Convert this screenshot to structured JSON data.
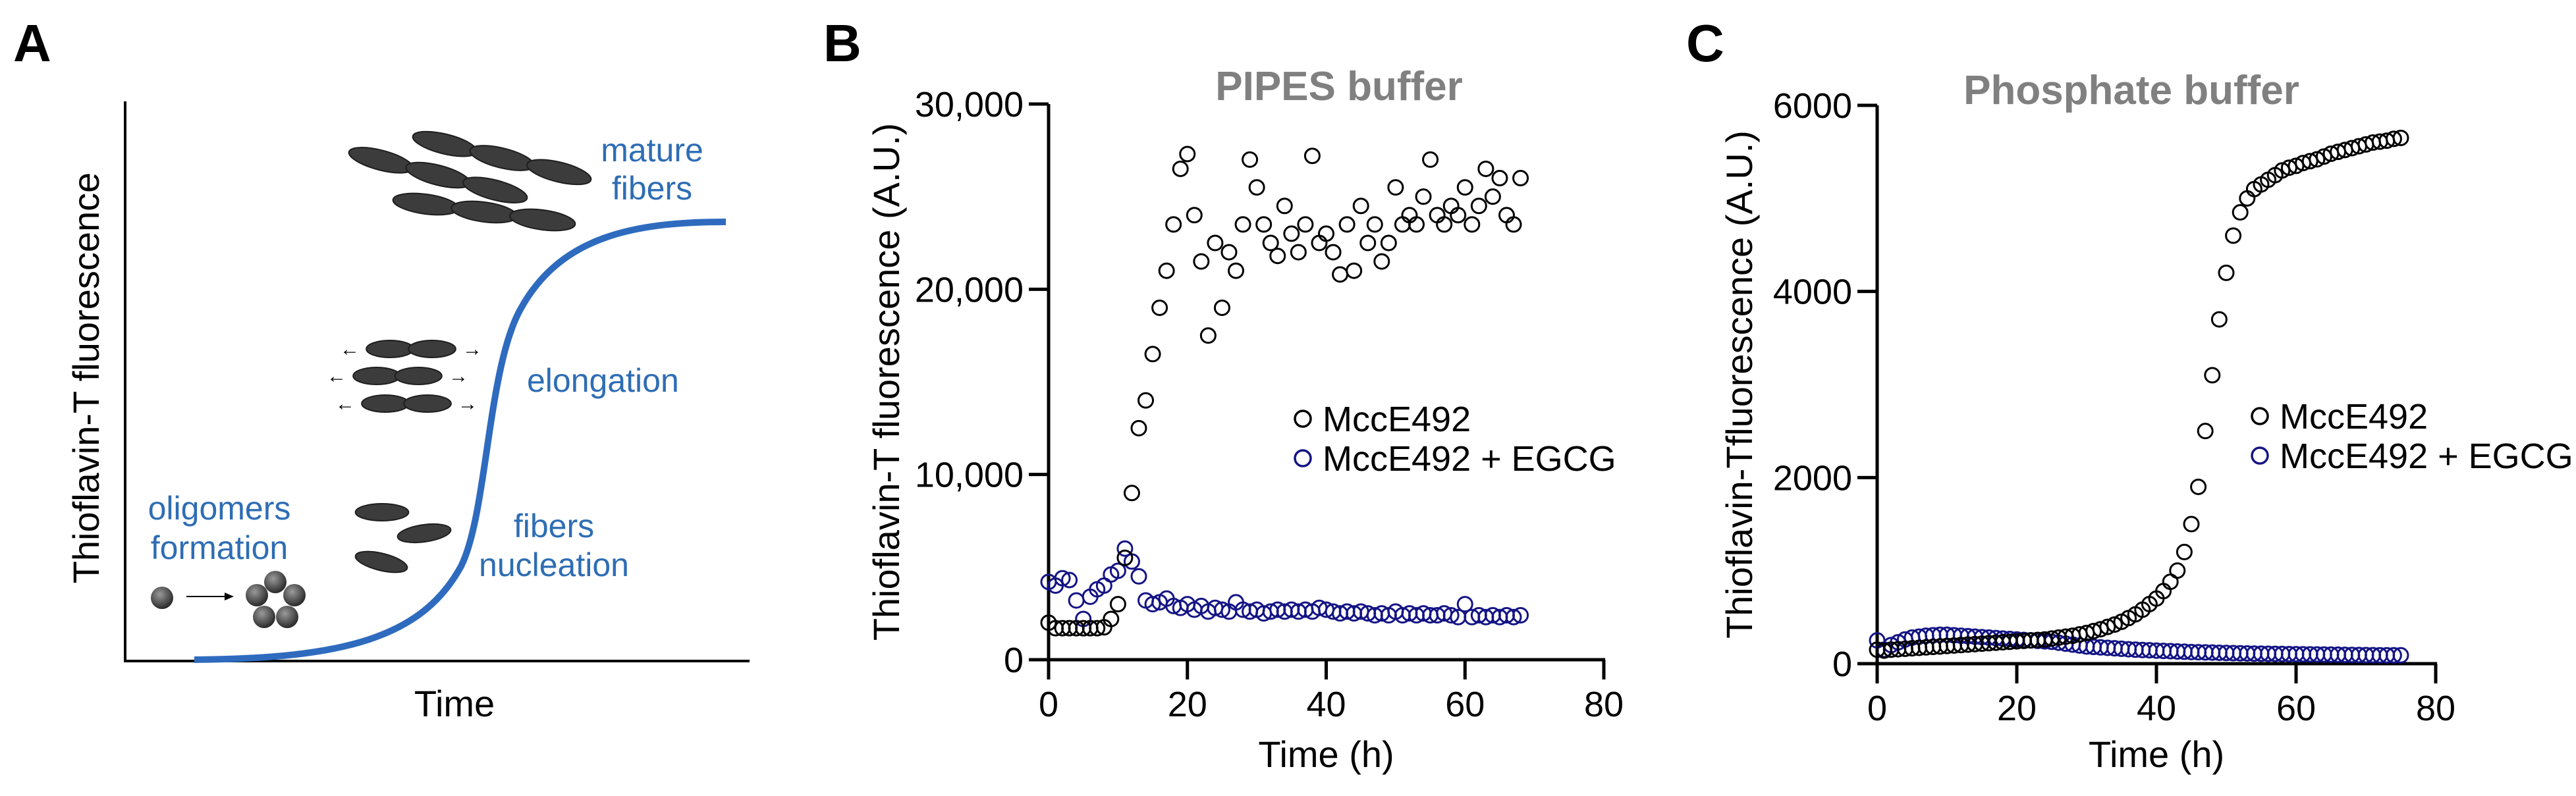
{
  "colors": {
    "curve_blue": "#2e6bbf",
    "stage_text": "#2e6db4",
    "series_black": "#000000",
    "series_navy": "#141485",
    "title_gray": "#808080",
    "fiber": "#3c3c3c"
  },
  "panel_a": {
    "letter": "A",
    "ylabel": "Thioflavin-T fluorescence",
    "xlabel": "Time",
    "stages": {
      "mature_1": "mature",
      "mature_2": "fibers",
      "elongation": "elongation",
      "nucleation_1": "fibers",
      "nucleation_2": "nucleation",
      "oligomers_1": "oligomers",
      "oligomers_2": "formation"
    }
  },
  "chart_data": [
    {
      "panel": "B",
      "type": "scatter",
      "title": "PIPES buffer",
      "xlabel": "Time (h)",
      "ylabel": "Thioflavin-T fluorescence (A.U.)",
      "xlim": [
        0,
        80
      ],
      "ylim": [
        0,
        30000
      ],
      "xticks": [
        0,
        20,
        40,
        60,
        80
      ],
      "yticks": [
        0,
        10000,
        20000,
        30000
      ],
      "ytick_labels": [
        "0",
        "10,000",
        "20,000",
        "30,000"
      ],
      "legend_position": "center-right",
      "series": [
        {
          "name": "MccE492",
          "color": "#000000",
          "x": [
            0,
            1,
            2,
            3,
            4,
            5,
            6,
            7,
            8,
            9,
            10,
            11,
            12,
            13,
            14,
            15,
            16,
            17,
            18,
            19,
            20,
            21,
            22,
            23,
            24,
            25,
            26,
            27,
            28,
            29,
            30,
            31,
            32,
            33,
            34,
            35,
            36,
            37,
            38,
            39,
            40,
            41,
            42,
            43,
            44,
            45,
            46,
            47,
            48,
            49,
            50,
            51,
            52,
            53,
            54,
            55,
            56,
            57,
            58,
            59,
            60,
            61,
            62,
            63,
            64,
            65,
            66,
            67,
            68
          ],
          "y": [
            2000,
            1700,
            1700,
            1700,
            1700,
            1700,
            1700,
            1700,
            1750,
            2200,
            3000,
            5500,
            9000,
            12500,
            14000,
            16500,
            19000,
            21000,
            23500,
            26500,
            27300,
            24000,
            21500,
            17500,
            22500,
            19000,
            22000,
            21000,
            23500,
            27000,
            25500,
            23500,
            22500,
            21800,
            24500,
            23000,
            22000,
            23500,
            27200,
            22500,
            23000,
            22000,
            20800,
            23500,
            21000,
            24500,
            22500,
            23500,
            21500,
            22500,
            25500,
            23500,
            24000,
            23500,
            25000,
            27000,
            24000,
            23500,
            24500,
            24000,
            25500,
            23500,
            24500,
            26500,
            25000,
            26000,
            24000,
            23500,
            26000
          ]
        },
        {
          "name": "MccE492 + EGCG",
          "color": "#141485",
          "x": [
            0,
            1,
            2,
            3,
            4,
            5,
            6,
            7,
            8,
            9,
            10,
            11,
            12,
            13,
            14,
            15,
            16,
            17,
            18,
            19,
            20,
            21,
            22,
            23,
            24,
            25,
            26,
            27,
            28,
            29,
            30,
            31,
            32,
            33,
            34,
            35,
            36,
            37,
            38,
            39,
            40,
            41,
            42,
            43,
            44,
            45,
            46,
            47,
            48,
            49,
            50,
            51,
            52,
            53,
            54,
            55,
            56,
            57,
            58,
            59,
            60,
            61,
            62,
            63,
            64,
            65,
            66,
            67,
            68
          ],
          "y": [
            4200,
            4000,
            4400,
            4300,
            3200,
            2200,
            3400,
            3800,
            4000,
            4600,
            4800,
            6000,
            5300,
            4500,
            3200,
            3000,
            3100,
            3300,
            2900,
            2800,
            3000,
            2700,
            2900,
            2600,
            2800,
            2700,
            2600,
            3100,
            2700,
            2600,
            2700,
            2500,
            2600,
            2700,
            2600,
            2700,
            2600,
            2700,
            2600,
            2800,
            2700,
            2600,
            2500,
            2600,
            2500,
            2600,
            2500,
            2400,
            2500,
            2400,
            2600,
            2400,
            2500,
            2400,
            2500,
            2400,
            2400,
            2500,
            2400,
            2300,
            3000,
            2300,
            2400,
            2300,
            2400,
            2300,
            2400,
            2300,
            2400
          ]
        }
      ]
    },
    {
      "panel": "C",
      "type": "scatter",
      "title": "Phosphate buffer",
      "xlabel": "Time (h)",
      "ylabel": "Thioflavin-Tfluorescence (A.U.)",
      "xlim": [
        0,
        80
      ],
      "ylim": [
        0,
        6000
      ],
      "xticks": [
        0,
        20,
        40,
        60,
        80
      ],
      "yticks": [
        0,
        2000,
        4000,
        6000
      ],
      "ytick_labels": [
        "0",
        "2000",
        "4000",
        "6000"
      ],
      "legend_position": "center-right",
      "series": [
        {
          "name": "MccE492",
          "color": "#000000",
          "x": [
            0,
            1,
            2,
            3,
            4,
            5,
            6,
            7,
            8,
            9,
            10,
            11,
            12,
            13,
            14,
            15,
            16,
            17,
            18,
            19,
            20,
            21,
            22,
            23,
            24,
            25,
            26,
            27,
            28,
            29,
            30,
            31,
            32,
            33,
            34,
            35,
            36,
            37,
            38,
            39,
            40,
            41,
            42,
            43,
            44,
            45,
            46,
            47,
            48,
            49,
            50,
            51,
            52,
            53,
            54,
            55,
            56,
            57,
            58,
            59,
            60,
            61,
            62,
            63,
            64,
            65,
            66,
            67,
            68,
            69,
            70,
            71,
            72,
            73,
            74,
            75
          ],
          "y": [
            150,
            140,
            150,
            155,
            160,
            165,
            170,
            175,
            180,
            185,
            190,
            195,
            200,
            205,
            210,
            215,
            220,
            225,
            230,
            235,
            240,
            245,
            250,
            255,
            260,
            270,
            280,
            290,
            300,
            315,
            330,
            350,
            370,
            395,
            420,
            450,
            490,
            530,
            580,
            640,
            700,
            780,
            880,
            1000,
            1200,
            1500,
            1900,
            2500,
            3100,
            3700,
            4200,
            4600,
            4850,
            5000,
            5100,
            5150,
            5200,
            5250,
            5300,
            5330,
            5350,
            5380,
            5400,
            5420,
            5450,
            5480,
            5500,
            5520,
            5540,
            5560,
            5580,
            5600,
            5610,
            5620,
            5640,
            5650
          ]
        },
        {
          "name": "MccE492 + EGCG",
          "color": "#141485",
          "x": [
            0,
            1,
            2,
            3,
            4,
            5,
            6,
            7,
            8,
            9,
            10,
            11,
            12,
            13,
            14,
            15,
            16,
            17,
            18,
            19,
            20,
            21,
            22,
            23,
            24,
            25,
            26,
            27,
            28,
            29,
            30,
            31,
            32,
            33,
            34,
            35,
            36,
            37,
            38,
            39,
            40,
            41,
            42,
            43,
            44,
            45,
            46,
            47,
            48,
            49,
            50,
            51,
            52,
            53,
            54,
            55,
            56,
            57,
            58,
            59,
            60,
            61,
            62,
            63,
            64,
            65,
            66,
            67,
            68,
            69,
            70,
            71,
            72,
            73,
            74,
            75
          ],
          "y": [
            250,
            150,
            200,
            230,
            260,
            280,
            290,
            300,
            305,
            310,
            310,
            305,
            300,
            295,
            290,
            285,
            280,
            275,
            270,
            265,
            260,
            255,
            250,
            245,
            240,
            235,
            225,
            215,
            205,
            195,
            185,
            180,
            175,
            170,
            165,
            160,
            155,
            150,
            147,
            144,
            140,
            137,
            134,
            131,
            128,
            125,
            123,
            121,
            119,
            117,
            115,
            113,
            111,
            110,
            108,
            107,
            106,
            105,
            104,
            103,
            102,
            101,
            100,
            99,
            98,
            97,
            96,
            95,
            94,
            93,
            92,
            91,
            90,
            90,
            90,
            90
          ]
        }
      ]
    }
  ]
}
